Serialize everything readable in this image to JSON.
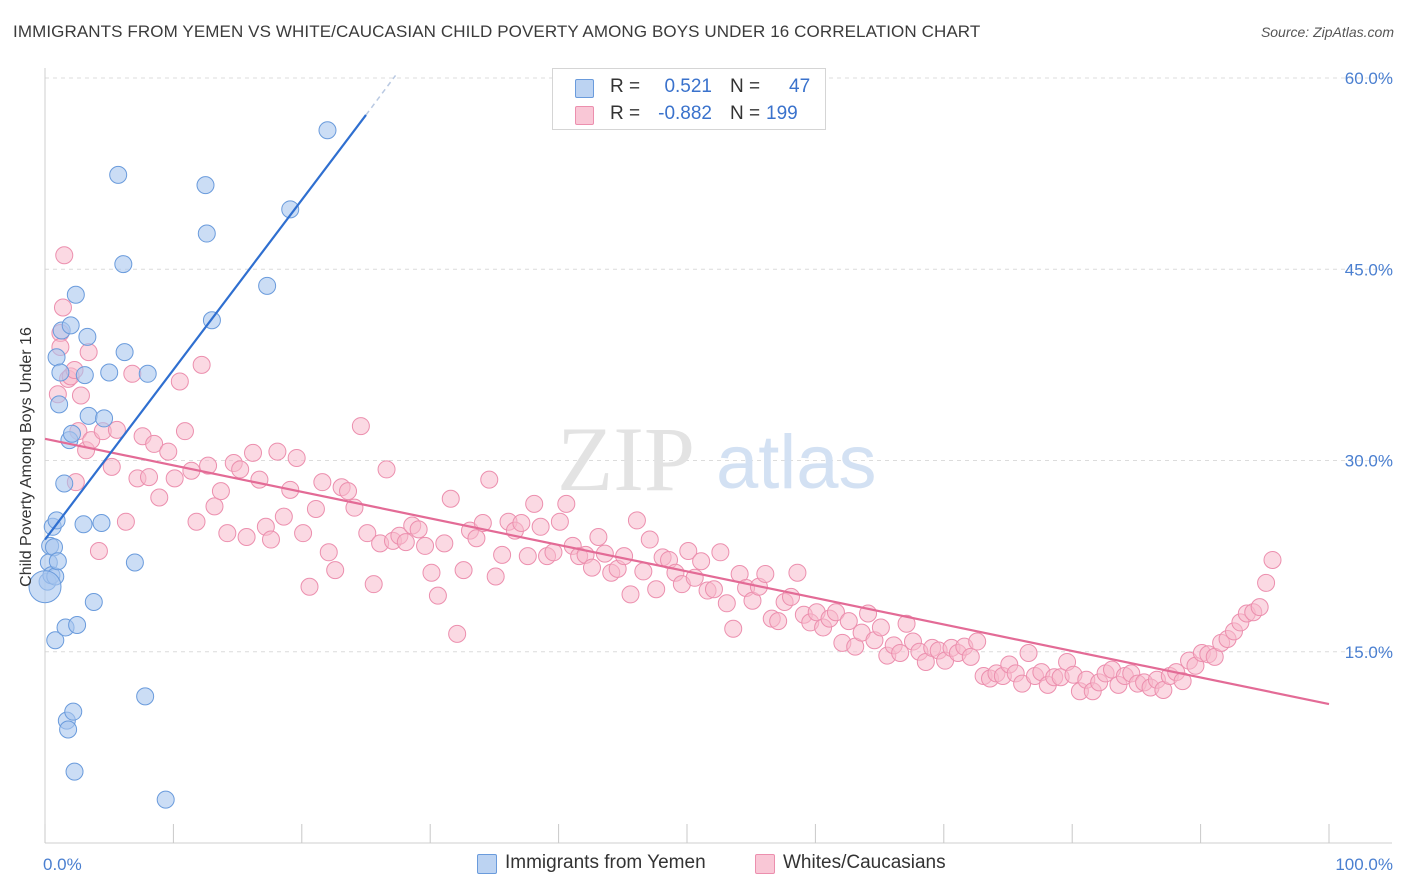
{
  "header": {
    "title": "IMMIGRANTS FROM YEMEN VS WHITE/CAUCASIAN CHILD POVERTY AMONG BOYS UNDER 16 CORRELATION CHART",
    "source": "Source: ZipAtlas.com"
  },
  "legend": {
    "r_label": "R =",
    "n_label": "N =",
    "series1": {
      "r": "0.521",
      "n": "47"
    },
    "series2": {
      "r": "-0.882",
      "n": "199"
    }
  },
  "watermark": {
    "zip": "ZIP",
    "atlas": "atlas"
  },
  "colors": {
    "blue_fill": "#a9c7ee",
    "blue_stroke": "#6a9bdc",
    "blue_line": "#2f6fd0",
    "pink_fill": "#f7b9cc",
    "pink_stroke": "#ec8fae",
    "pink_line": "#e36b96",
    "tick_text": "#4a7fd0"
  },
  "chart_data": {
    "type": "scatter",
    "title": "IMMIGRANTS FROM YEMEN VS WHITE/CAUCASIAN CHILD POVERTY AMONG BOYS UNDER 16 CORRELATION CHART",
    "xlabel": "",
    "ylabel": "Child Poverty Among Boys Under 16",
    "xlim": [
      0,
      100
    ],
    "ylim": [
      0,
      60
    ],
    "x_tick_labels": [
      "0.0%",
      "100.0%"
    ],
    "y_ticks": [
      15,
      30,
      45,
      60
    ],
    "y_tick_labels": [
      "15.0%",
      "30.0%",
      "45.0%",
      "60.0%"
    ],
    "series": [
      {
        "name": "Immigrants from Yemen",
        "color": "#a9c7ee",
        "trend": {
          "x": [
            0,
            25
          ],
          "y": [
            23.8,
            57.1
          ]
        },
        "trend_dashed": {
          "x": [
            25,
            27.3
          ],
          "y": [
            57.1,
            60.2
          ]
        },
        "points": [
          [
            0.2,
            20.5
          ],
          [
            0.3,
            22.0
          ],
          [
            0.4,
            23.3
          ],
          [
            0.5,
            21.0
          ],
          [
            0.6,
            24.8
          ],
          [
            0.7,
            23.2
          ],
          [
            0.8,
            20.9
          ],
          [
            0.9,
            25.3
          ],
          [
            1.0,
            22.1
          ],
          [
            0.8,
            15.9
          ],
          [
            0.9,
            38.1
          ],
          [
            1.1,
            34.4
          ],
          [
            1.2,
            36.9
          ],
          [
            1.3,
            40.2
          ],
          [
            1.5,
            28.2
          ],
          [
            1.6,
            16.9
          ],
          [
            1.7,
            9.6
          ],
          [
            1.8,
            8.9
          ],
          [
            1.9,
            31.6
          ],
          [
            2.0,
            40.6
          ],
          [
            2.1,
            32.1
          ],
          [
            2.2,
            10.3
          ],
          [
            2.3,
            5.6
          ],
          [
            2.4,
            43.0
          ],
          [
            2.5,
            17.1
          ],
          [
            3.0,
            25.0
          ],
          [
            3.1,
            36.7
          ],
          [
            3.3,
            39.7
          ],
          [
            3.4,
            33.5
          ],
          [
            3.8,
            18.9
          ],
          [
            4.4,
            25.1
          ],
          [
            4.6,
            33.3
          ],
          [
            5.0,
            36.9
          ],
          [
            5.7,
            52.4
          ],
          [
            6.1,
            45.4
          ],
          [
            6.2,
            38.5
          ],
          [
            7.0,
            22.0
          ],
          [
            7.8,
            11.5
          ],
          [
            8.0,
            36.8
          ],
          [
            9.4,
            3.4
          ],
          [
            12.5,
            51.6
          ],
          [
            12.6,
            47.8
          ],
          [
            13.0,
            41.0
          ],
          [
            17.3,
            43.7
          ],
          [
            19.1,
            49.7
          ],
          [
            22.0,
            55.9
          ],
          [
            0.0,
            20.1
          ]
        ]
      },
      {
        "name": "Whites/Caucasians",
        "color": "#f7b9cc",
        "trend": {
          "x": [
            0,
            100
          ],
          "y": [
            31.7,
            10.9
          ]
        },
        "points": [
          [
            1.0,
            35.2
          ],
          [
            1.2,
            40.0
          ],
          [
            1.4,
            42.0
          ],
          [
            1.5,
            46.1
          ],
          [
            1.8,
            36.4
          ],
          [
            2.0,
            36.6
          ],
          [
            2.3,
            37.1
          ],
          [
            2.4,
            28.3
          ],
          [
            2.6,
            32.3
          ],
          [
            2.8,
            35.1
          ],
          [
            3.2,
            30.8
          ],
          [
            3.4,
            38.5
          ],
          [
            3.6,
            31.6
          ],
          [
            4.2,
            22.9
          ],
          [
            4.5,
            32.3
          ],
          [
            5.2,
            29.5
          ],
          [
            5.6,
            32.4
          ],
          [
            6.3,
            25.2
          ],
          [
            6.8,
            36.8
          ],
          [
            7.2,
            28.6
          ],
          [
            7.6,
            31.9
          ],
          [
            8.1,
            28.7
          ],
          [
            8.5,
            31.3
          ],
          [
            8.9,
            27.1
          ],
          [
            9.6,
            30.7
          ],
          [
            10.1,
            28.6
          ],
          [
            10.5,
            36.2
          ],
          [
            10.9,
            32.3
          ],
          [
            11.4,
            29.2
          ],
          [
            11.8,
            25.2
          ],
          [
            12.2,
            37.5
          ],
          [
            12.7,
            29.6
          ],
          [
            13.2,
            26.4
          ],
          [
            13.7,
            27.6
          ],
          [
            14.2,
            24.3
          ],
          [
            14.7,
            29.8
          ],
          [
            15.2,
            29.3
          ],
          [
            15.7,
            24.0
          ],
          [
            16.2,
            30.6
          ],
          [
            16.7,
            28.5
          ],
          [
            17.2,
            24.8
          ],
          [
            17.6,
            23.8
          ],
          [
            18.1,
            30.7
          ],
          [
            18.6,
            25.6
          ],
          [
            19.1,
            27.7
          ],
          [
            19.6,
            30.2
          ],
          [
            20.1,
            24.3
          ],
          [
            20.6,
            20.1
          ],
          [
            21.1,
            26.2
          ],
          [
            21.6,
            28.3
          ],
          [
            22.1,
            22.8
          ],
          [
            22.6,
            21.4
          ],
          [
            23.1,
            27.9
          ],
          [
            23.6,
            27.6
          ],
          [
            24.1,
            26.3
          ],
          [
            24.6,
            32.7
          ],
          [
            25.1,
            24.3
          ],
          [
            25.6,
            20.3
          ],
          [
            26.1,
            23.5
          ],
          [
            26.6,
            29.3
          ],
          [
            27.1,
            23.7
          ],
          [
            27.6,
            24.1
          ],
          [
            28.1,
            23.6
          ],
          [
            28.6,
            24.9
          ],
          [
            29.1,
            24.6
          ],
          [
            29.6,
            23.3
          ],
          [
            30.1,
            21.2
          ],
          [
            30.6,
            19.4
          ],
          [
            31.1,
            23.5
          ],
          [
            31.6,
            27.0
          ],
          [
            32.1,
            16.4
          ],
          [
            32.6,
            21.4
          ],
          [
            33.1,
            24.5
          ],
          [
            33.6,
            23.9
          ],
          [
            34.1,
            25.1
          ],
          [
            34.6,
            28.5
          ],
          [
            35.1,
            20.9
          ],
          [
            35.6,
            22.6
          ],
          [
            36.1,
            25.2
          ],
          [
            36.6,
            24.5
          ],
          [
            37.1,
            25.1
          ],
          [
            37.6,
            22.5
          ],
          [
            38.1,
            26.6
          ],
          [
            38.6,
            24.8
          ],
          [
            39.1,
            22.5
          ],
          [
            39.6,
            22.8
          ],
          [
            40.1,
            25.2
          ],
          [
            40.6,
            26.6
          ],
          [
            41.1,
            23.3
          ],
          [
            41.6,
            22.5
          ],
          [
            42.1,
            22.6
          ],
          [
            42.6,
            21.6
          ],
          [
            43.1,
            24.0
          ],
          [
            43.6,
            22.7
          ],
          [
            44.1,
            21.2
          ],
          [
            44.6,
            21.5
          ],
          [
            45.1,
            22.5
          ],
          [
            45.6,
            19.5
          ],
          [
            46.1,
            25.3
          ],
          [
            46.6,
            21.3
          ],
          [
            47.1,
            23.8
          ],
          [
            47.6,
            19.9
          ],
          [
            48.1,
            22.4
          ],
          [
            48.6,
            22.2
          ],
          [
            49.1,
            21.2
          ],
          [
            49.6,
            20.3
          ],
          [
            50.1,
            22.9
          ],
          [
            50.6,
            20.8
          ],
          [
            51.1,
            22.1
          ],
          [
            51.6,
            19.8
          ],
          [
            52.1,
            19.9
          ],
          [
            52.6,
            22.8
          ],
          [
            53.1,
            18.8
          ],
          [
            53.6,
            16.8
          ],
          [
            54.1,
            21.1
          ],
          [
            54.6,
            20.0
          ],
          [
            55.1,
            19.0
          ],
          [
            55.6,
            20.1
          ],
          [
            56.1,
            21.1
          ],
          [
            56.6,
            17.6
          ],
          [
            57.1,
            17.4
          ],
          [
            57.6,
            18.9
          ],
          [
            58.1,
            19.3
          ],
          [
            58.6,
            21.2
          ],
          [
            59.1,
            17.9
          ],
          [
            59.6,
            17.3
          ],
          [
            60.1,
            18.1
          ],
          [
            60.6,
            16.9
          ],
          [
            61.1,
            17.6
          ],
          [
            61.6,
            18.1
          ],
          [
            62.1,
            15.7
          ],
          [
            62.6,
            17.4
          ],
          [
            63.1,
            15.4
          ],
          [
            63.6,
            16.5
          ],
          [
            64.1,
            18.0
          ],
          [
            64.6,
            15.9
          ],
          [
            65.1,
            16.9
          ],
          [
            65.6,
            14.7
          ],
          [
            66.1,
            15.5
          ],
          [
            66.6,
            14.9
          ],
          [
            67.1,
            17.2
          ],
          [
            67.6,
            15.8
          ],
          [
            68.1,
            15.0
          ],
          [
            68.6,
            14.2
          ],
          [
            69.1,
            15.3
          ],
          [
            69.6,
            15.1
          ],
          [
            70.1,
            14.3
          ],
          [
            70.6,
            15.3
          ],
          [
            71.1,
            14.9
          ],
          [
            71.6,
            15.4
          ],
          [
            72.1,
            14.6
          ],
          [
            72.6,
            15.8
          ],
          [
            73.1,
            13.1
          ],
          [
            73.6,
            12.9
          ],
          [
            74.1,
            13.3
          ],
          [
            74.6,
            13.1
          ],
          [
            75.1,
            14.0
          ],
          [
            75.6,
            13.3
          ],
          [
            76.1,
            12.5
          ],
          [
            76.6,
            14.9
          ],
          [
            77.1,
            13.1
          ],
          [
            77.6,
            13.4
          ],
          [
            78.1,
            12.4
          ],
          [
            78.6,
            13.0
          ],
          [
            79.1,
            13.0
          ],
          [
            79.6,
            14.2
          ],
          [
            80.1,
            13.2
          ],
          [
            80.6,
            11.9
          ],
          [
            81.1,
            12.8
          ],
          [
            81.6,
            11.9
          ],
          [
            82.1,
            12.6
          ],
          [
            82.6,
            13.3
          ],
          [
            83.1,
            13.6
          ],
          [
            83.6,
            12.4
          ],
          [
            84.1,
            13.1
          ],
          [
            84.6,
            13.3
          ],
          [
            85.1,
            12.5
          ],
          [
            85.6,
            12.6
          ],
          [
            86.1,
            12.2
          ],
          [
            86.6,
            12.8
          ],
          [
            87.1,
            12.0
          ],
          [
            87.6,
            13.1
          ],
          [
            88.1,
            13.4
          ],
          [
            88.6,
            12.7
          ],
          [
            89.1,
            14.3
          ],
          [
            89.6,
            13.9
          ],
          [
            90.1,
            14.9
          ],
          [
            90.6,
            14.8
          ],
          [
            91.1,
            14.6
          ],
          [
            91.6,
            15.7
          ],
          [
            92.1,
            16.0
          ],
          [
            92.6,
            16.6
          ],
          [
            93.1,
            17.3
          ],
          [
            93.6,
            18.0
          ],
          [
            94.1,
            18.1
          ],
          [
            94.6,
            18.5
          ],
          [
            95.1,
            20.4
          ],
          [
            95.6,
            22.2
          ],
          [
            1.2,
            38.9
          ]
        ]
      }
    ]
  },
  "bottom_legend": {
    "series1_label": "Immigrants from Yemen",
    "series2_label": "Whites/Caucasians"
  }
}
